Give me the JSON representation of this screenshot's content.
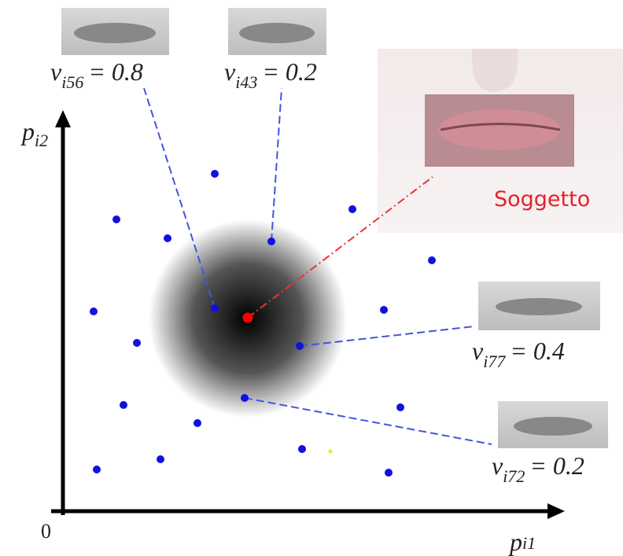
{
  "axes": {
    "x_label": {
      "symbol": "p",
      "subscript": "i1"
    },
    "y_label": {
      "symbol": "p",
      "subscript": "i2"
    },
    "origin": "0"
  },
  "annotations": [
    {
      "symbol": "v",
      "subscript": "i56",
      "equation": "= 0.8"
    },
    {
      "symbol": "v",
      "subscript": "i43",
      "equation": "= 0.2"
    },
    {
      "symbol": "v",
      "subscript": "i77",
      "equation": "= 0.4"
    },
    {
      "symbol": "v",
      "subscript": "i72",
      "equation": "= 0.2"
    }
  ],
  "subject_label": "Soggetto"
}
